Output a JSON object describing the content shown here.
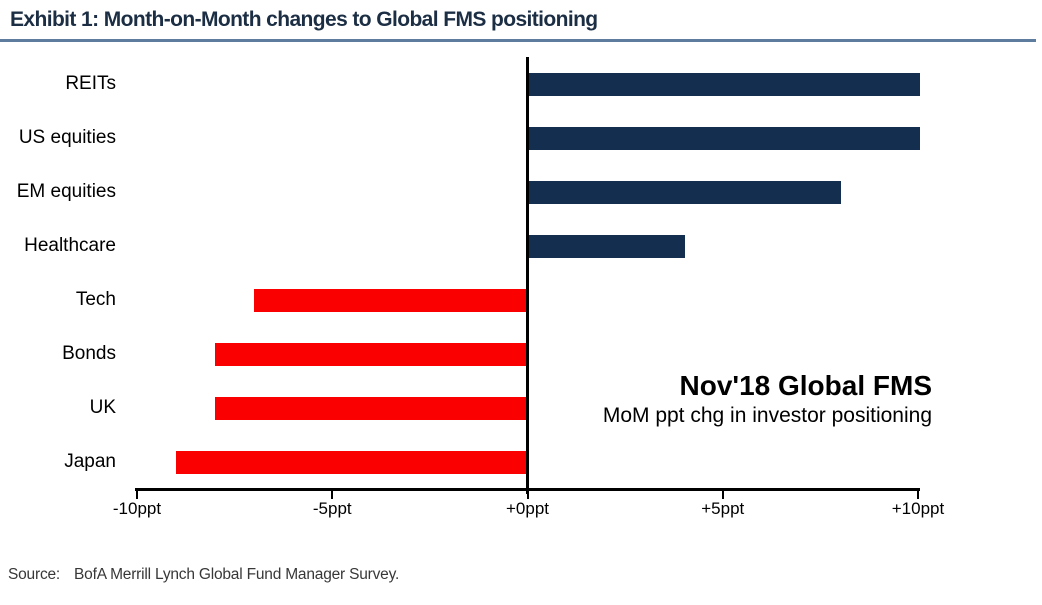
{
  "title": "Exhibit 1: Month-on-Month changes to Global FMS positioning",
  "annotation": {
    "heading": "Nov'18 Global FMS",
    "subheading": "MoM ppt chg in investor positioning"
  },
  "source": {
    "label": "Source:",
    "text": "BofA Merrill Lynch Global Fund Manager Survey."
  },
  "colors": {
    "positive_bar": "#132e4f",
    "negative_bar": "#fa0000",
    "title_text": "#1c2e44",
    "title_underline": "#5e7d9e",
    "axis": "#000000"
  },
  "chart_data": {
    "type": "bar",
    "orientation": "horizontal",
    "title": "Exhibit 1: Month-on-Month changes to Global FMS positioning",
    "xlabel": "MoM ppt chg in investor positioning",
    "unit": "ppt",
    "categories": [
      "REITs",
      "US equities",
      "EM equities",
      "Healthcare",
      "Tech",
      "Bonds",
      "UK",
      "Japan"
    ],
    "values": [
      10,
      10,
      8,
      4,
      -7,
      -8,
      -8,
      -9
    ],
    "xlim": [
      -10,
      10
    ],
    "x_tick_values": [
      -10,
      -5,
      0,
      5,
      10
    ],
    "x_tick_labels": [
      "-10ppt",
      "-5ppt",
      "+0ppt",
      "+5ppt",
      "+10ppt"
    ],
    "grid": false,
    "zero_line": true,
    "legend": "none",
    "positive_color": "#132e4f",
    "negative_color": "#fa0000"
  }
}
